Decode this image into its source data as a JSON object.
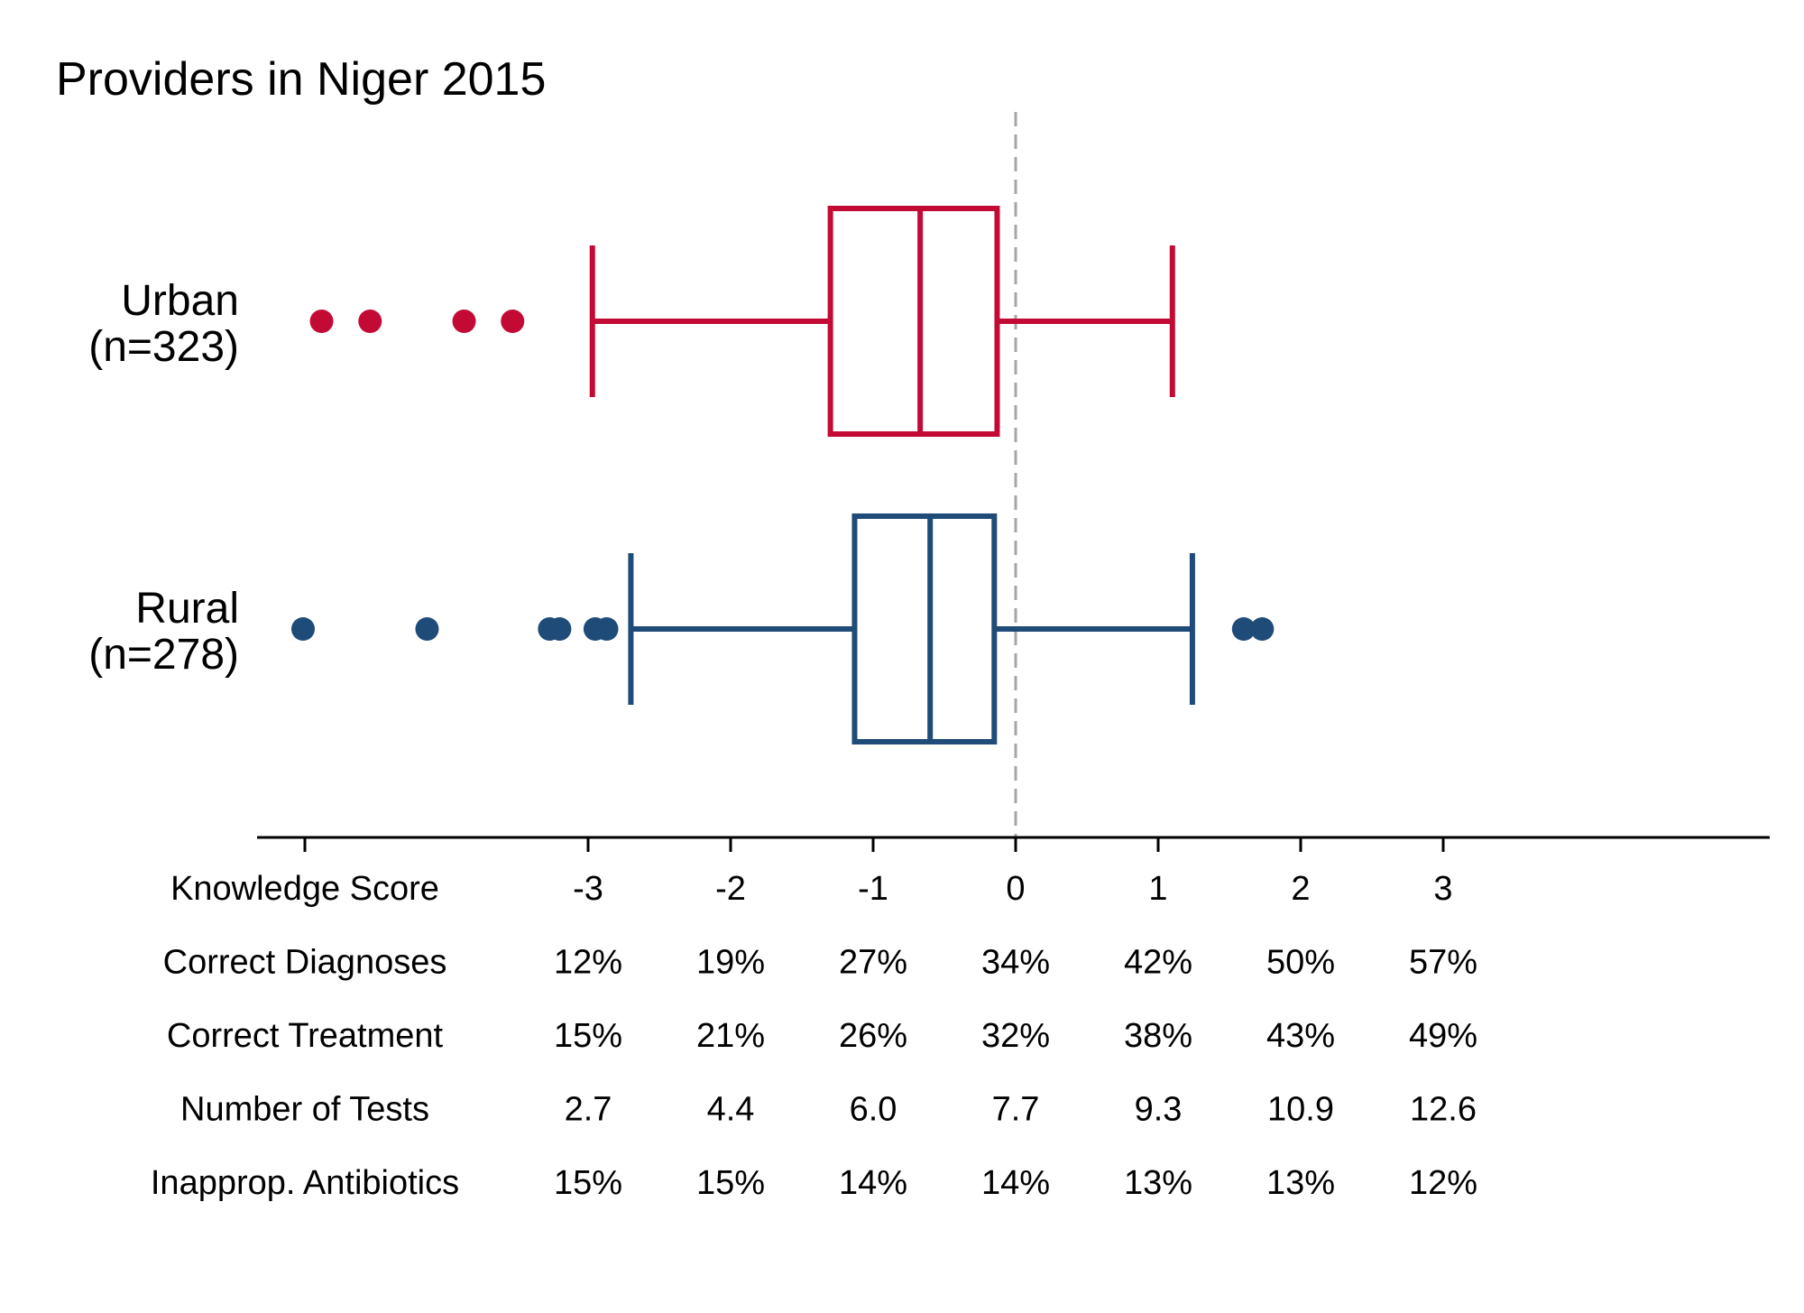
{
  "chart_data": {
    "type": "box",
    "title": "Providers in Niger 2015",
    "xlim": [
      -3.2,
      5.3
    ],
    "xticks": [
      -3,
      -2,
      -1,
      0,
      1,
      2,
      3
    ],
    "reference_line": {
      "x": 0,
      "style": "dashed",
      "color": "#a6a6a6"
    },
    "grid": false,
    "groups": [
      {
        "label_line1": "Urban",
        "label_line2": "(n=323)",
        "color": "#c20a35",
        "whisker_low": -2.97,
        "q1": -1.3,
        "median": -0.67,
        "q3": -0.13,
        "whisker_high": 1.1,
        "outliers": [
          -4.87,
          -4.53,
          -3.87,
          -3.53
        ]
      },
      {
        "label_line1": "Rural",
        "label_line2": "(n=278)",
        "color": "#1f4b78",
        "whisker_low": -2.7,
        "q1": -1.13,
        "median": -0.6,
        "q3": -0.15,
        "whisker_high": 1.24,
        "outliers": [
          -5.0,
          -4.13,
          -3.27,
          -3.2,
          -2.95,
          -2.87,
          1.6,
          1.73
        ]
      }
    ],
    "table": {
      "rows": [
        {
          "label": "Knowledge Score",
          "values": [
            "-3",
            "-2",
            "-1",
            "0",
            "1",
            "2",
            "3"
          ]
        },
        {
          "label": "Correct Diagnoses",
          "values": [
            "12%",
            "19%",
            "27%",
            "34%",
            "42%",
            "50%",
            "57%"
          ]
        },
        {
          "label": "Correct Treatment",
          "values": [
            "15%",
            "21%",
            "26%",
            "32%",
            "38%",
            "43%",
            "49%"
          ]
        },
        {
          "label": "Number of Tests",
          "values": [
            "2.7",
            "4.4",
            "6.0",
            "7.7",
            "9.3",
            "10.9",
            "12.6"
          ]
        },
        {
          "label": "Inapprop. Antibiotics",
          "values": [
            "15%",
            "15%",
            "14%",
            "14%",
            "13%",
            "13%",
            "12%"
          ]
        }
      ]
    }
  }
}
